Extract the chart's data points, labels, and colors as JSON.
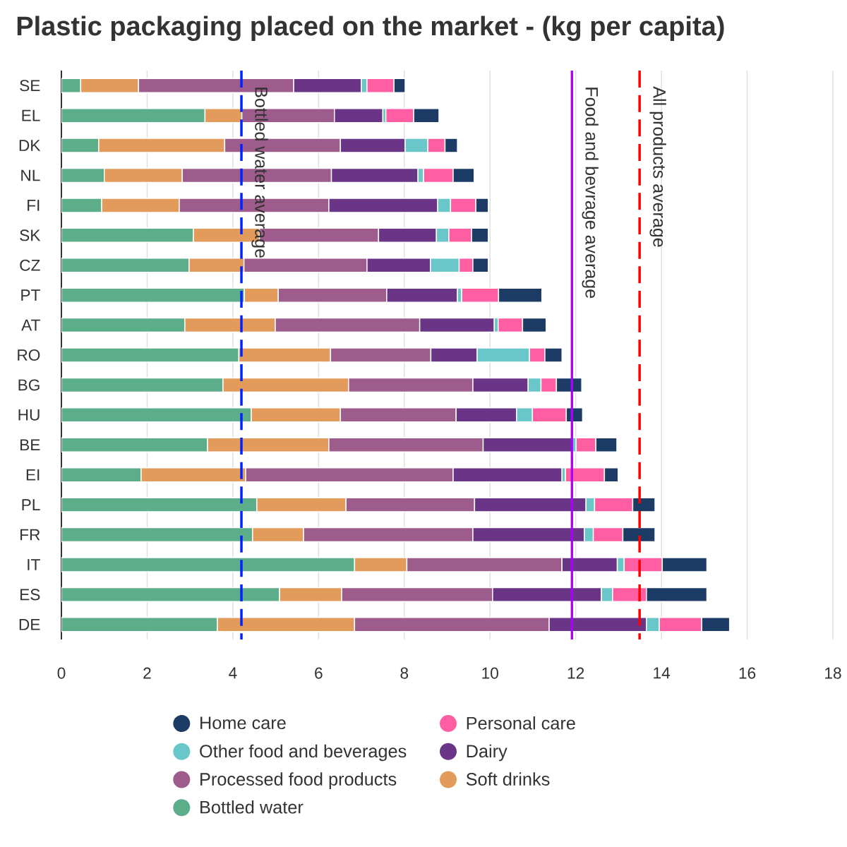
{
  "chart_data": {
    "type": "bar",
    "orientation": "horizontal",
    "stacked": true,
    "title": "Plastic packaging placed on the market - (kg per capita)",
    "categories": [
      "SE",
      "EL",
      "DK",
      "NL",
      "FI",
      "SK",
      "CZ",
      "PT",
      "AT",
      "RO",
      "BG",
      "HU",
      "BE",
      "EI",
      "PL",
      "FR",
      "IT",
      "ES",
      "DE"
    ],
    "series": [
      {
        "name": "Bottled water",
        "color": "#5cad8a",
        "values": [
          0.45,
          3.35,
          0.87,
          1.0,
          0.94,
          3.08,
          2.98,
          4.27,
          2.88,
          4.14,
          3.77,
          4.43,
          3.41,
          1.86,
          4.56,
          4.46,
          6.84,
          5.09,
          3.64
        ]
      },
      {
        "name": "Soft drinks",
        "color": "#e39b5c",
        "values": [
          1.35,
          0.86,
          2.94,
          1.82,
          1.81,
          1.54,
          1.28,
          0.79,
          2.11,
          2.14,
          2.93,
          2.08,
          2.83,
          2.44,
          2.08,
          1.19,
          1.22,
          1.45,
          3.2
        ]
      },
      {
        "name": "Processed food products",
        "color": "#9e5c8c",
        "values": [
          3.62,
          2.16,
          2.7,
          3.48,
          3.49,
          2.78,
          2.87,
          2.53,
          3.37,
          2.34,
          2.9,
          2.7,
          3.6,
          4.84,
          3.0,
          3.95,
          3.62,
          3.52,
          4.54
        ]
      },
      {
        "name": "Dairy",
        "color": "#6b3587",
        "values": [
          1.58,
          1.13,
          1.51,
          2.02,
          2.54,
          1.35,
          1.48,
          1.65,
          1.74,
          1.08,
          1.29,
          1.41,
          2.07,
          2.54,
          2.6,
          2.6,
          1.29,
          2.54,
          2.27
        ]
      },
      {
        "name": "Other food and beverages",
        "color": "#69c7c9",
        "values": [
          0.13,
          0.07,
          0.53,
          0.13,
          0.3,
          0.29,
          0.67,
          0.1,
          0.09,
          1.22,
          0.3,
          0.37,
          0.1,
          0.08,
          0.2,
          0.21,
          0.16,
          0.26,
          0.3
        ]
      },
      {
        "name": "Personal care",
        "color": "#ff5fa2",
        "values": [
          0.63,
          0.65,
          0.4,
          0.69,
          0.59,
          0.53,
          0.32,
          0.86,
          0.57,
          0.36,
          0.36,
          0.79,
          0.46,
          0.91,
          0.89,
          0.69,
          0.89,
          0.79,
          0.99
        ]
      },
      {
        "name": "Home care",
        "color": "#1c3c66",
        "values": [
          0.26,
          0.59,
          0.29,
          0.49,
          0.29,
          0.39,
          0.36,
          1.01,
          0.55,
          0.4,
          0.59,
          0.38,
          0.49,
          0.32,
          0.52,
          0.75,
          1.04,
          1.41,
          0.65
        ]
      }
    ],
    "xlim": [
      0,
      18
    ],
    "xticks": [
      0,
      2,
      4,
      6,
      8,
      10,
      12,
      14,
      16,
      18
    ],
    "grid": "x",
    "legend": "bottom",
    "ref_lines": [
      {
        "axis": "x",
        "value": 4.2,
        "label": "Bottled water average",
        "color": "#0022ff",
        "line_style": "dashed"
      },
      {
        "axis": "x",
        "value": 11.91,
        "label": "Food and bevrage average",
        "color": "#aa00ff",
        "line_style": "solid"
      },
      {
        "axis": "x",
        "value": 13.49,
        "label": "All products average",
        "color": "#ff0000",
        "line_style": "dashed"
      }
    ]
  }
}
